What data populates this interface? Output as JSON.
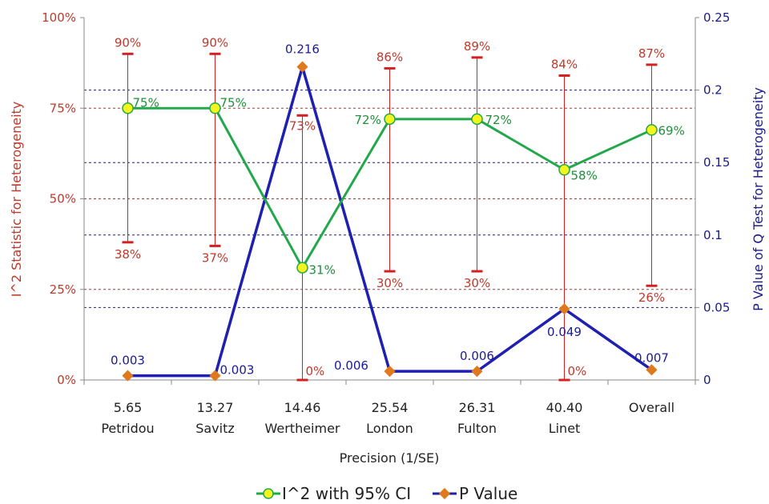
{
  "chart_data": {
    "type": "line",
    "xlabel": "Precision (1/SE)",
    "ylabel_left": "I^2 Statistic for Heterogeneity",
    "ylabel_right": "P Value of Q Test for Heterogeneity",
    "y_left": {
      "ylim": [
        0,
        100
      ],
      "ticks": [
        "0%",
        "25%",
        "50%",
        "75%",
        "100%"
      ]
    },
    "y_right": {
      "ylim": [
        0,
        0.25
      ],
      "ticks": [
        "0",
        "0.05",
        "0.1",
        "0.15",
        "0.2",
        "0.25"
      ]
    },
    "grid": "dashed horizontal",
    "legend_placement": "bottom",
    "categories": [
      {
        "precision": "5.65",
        "study": "Petridou"
      },
      {
        "precision": "13.27",
        "study": "Savitz"
      },
      {
        "precision": "14.46",
        "study": "Wertheimer"
      },
      {
        "precision": "25.54",
        "study": "London"
      },
      {
        "precision": "26.31",
        "study": "Fulton"
      },
      {
        "precision": "40.40",
        "study": "Linet"
      },
      {
        "precision": "",
        "study": "Overall"
      }
    ],
    "series": [
      {
        "name": "I^2 with 95% CI",
        "axis": "left",
        "color": "#22a84a",
        "marker_fill": "#f5f51e",
        "values": [
          75,
          75,
          31,
          72,
          72,
          58,
          69
        ],
        "labels": [
          "75%",
          "75%",
          "31%",
          "72%",
          "72%",
          "58%",
          "69%"
        ],
        "ci_lower": [
          38,
          37,
          0,
          30,
          30,
          0,
          26
        ],
        "ci_upper": [
          90,
          90,
          73,
          86,
          89,
          84,
          87
        ],
        "ci_lower_labels": [
          "38%",
          "37%",
          "0%",
          "30%",
          "30%",
          "0%",
          "26%"
        ],
        "ci_upper_labels": [
          "90%",
          "90%",
          "73%",
          "86%",
          "89%",
          "84%",
          "87%"
        ],
        "ci_color": "#d42020"
      },
      {
        "name": "P Value",
        "axis": "right",
        "color": "#1f1fb0",
        "marker_fill": "#e0781e",
        "values": [
          0.003,
          0.003,
          0.216,
          0.006,
          0.006,
          0.049,
          0.007
        ],
        "labels": [
          "0.003",
          "0.003",
          "0.216",
          "0.006",
          "0.006",
          "0.049",
          "0.007"
        ]
      }
    ]
  }
}
